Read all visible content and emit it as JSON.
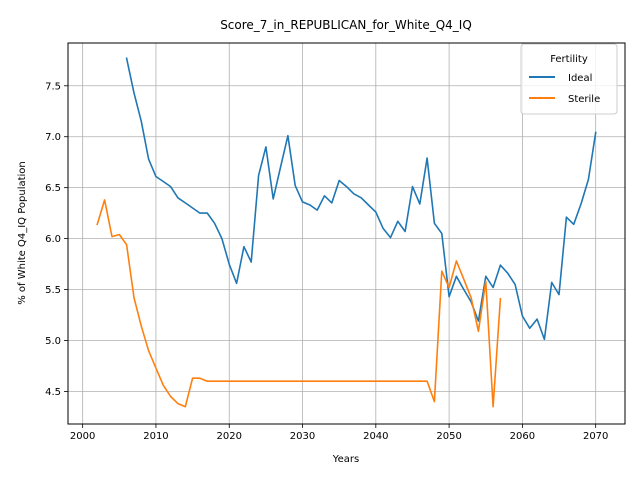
{
  "chart_data": {
    "type": "line",
    "title": "Score_7_in_REPUBLICAN_for_White_Q4_IQ",
    "xlabel": "Years",
    "ylabel": "% of White Q4_IQ Population",
    "xlim": [
      1998,
      2074
    ],
    "ylim": [
      4.18,
      7.92
    ],
    "xticks": [
      2000,
      2010,
      2020,
      2030,
      2040,
      2050,
      2060,
      2070
    ],
    "yticks": [
      4.5,
      5.0,
      5.5,
      6.0,
      6.5,
      7.0,
      7.5
    ],
    "ytick_labels": [
      "4.5",
      "5.0",
      "5.5",
      "6.0",
      "6.5",
      "7.0",
      "7.5"
    ],
    "grid": true,
    "legend": {
      "title": "Fertility",
      "position": "top-right"
    },
    "series": [
      {
        "name": "Ideal",
        "color": "#1f77b4",
        "points": [
          [
            2006,
            7.77
          ],
          [
            2007,
            7.43
          ],
          [
            2008,
            7.15
          ],
          [
            2009,
            6.78
          ],
          [
            2010,
            6.61
          ],
          [
            2011,
            6.56
          ],
          [
            2012,
            6.51
          ],
          [
            2013,
            6.4
          ],
          [
            2014,
            6.35
          ],
          [
            2015,
            6.3
          ],
          [
            2016,
            6.25
          ],
          [
            2017,
            6.25
          ],
          [
            2018,
            6.15
          ],
          [
            2019,
            6.0
          ],
          [
            2020,
            5.75
          ],
          [
            2021,
            5.56
          ],
          [
            2022,
            5.92
          ],
          [
            2023,
            5.77
          ],
          [
            2024,
            6.62
          ],
          [
            2025,
            6.9
          ],
          [
            2026,
            6.39
          ],
          [
            2027,
            6.7
          ],
          [
            2028,
            7.01
          ],
          [
            2029,
            6.52
          ],
          [
            2030,
            6.36
          ],
          [
            2031,
            6.33
          ],
          [
            2032,
            6.28
          ],
          [
            2033,
            6.42
          ],
          [
            2034,
            6.35
          ],
          [
            2035,
            6.57
          ],
          [
            2036,
            6.51
          ],
          [
            2037,
            6.44
          ],
          [
            2038,
            6.4
          ],
          [
            2039,
            6.33
          ],
          [
            2040,
            6.26
          ],
          [
            2041,
            6.1
          ],
          [
            2042,
            6.01
          ],
          [
            2043,
            6.17
          ],
          [
            2044,
            6.07
          ],
          [
            2045,
            6.51
          ],
          [
            2046,
            6.34
          ],
          [
            2047,
            6.79
          ],
          [
            2048,
            6.15
          ],
          [
            2049,
            6.05
          ],
          [
            2050,
            5.43
          ],
          [
            2051,
            5.63
          ],
          [
            2052,
            5.5
          ],
          [
            2053,
            5.38
          ],
          [
            2054,
            5.19
          ],
          [
            2055,
            5.63
          ],
          [
            2056,
            5.52
          ],
          [
            2057,
            5.74
          ],
          [
            2058,
            5.66
          ],
          [
            2059,
            5.55
          ],
          [
            2060,
            5.24
          ],
          [
            2061,
            5.12
          ],
          [
            2062,
            5.21
          ],
          [
            2063,
            5.01
          ],
          [
            2064,
            5.57
          ],
          [
            2065,
            5.45
          ],
          [
            2066,
            6.21
          ],
          [
            2067,
            6.14
          ],
          [
            2068,
            6.34
          ],
          [
            2069,
            6.58
          ],
          [
            2070,
            7.04
          ]
        ]
      },
      {
        "name": "Sterile",
        "color": "#ff7f0e",
        "points": [
          [
            2002,
            6.14
          ],
          [
            2003,
            6.38
          ],
          [
            2004,
            6.02
          ],
          [
            2005,
            6.04
          ],
          [
            2006,
            5.94
          ],
          [
            2007,
            5.42
          ],
          [
            2008,
            5.14
          ],
          [
            2009,
            4.9
          ],
          [
            2010,
            4.73
          ],
          [
            2011,
            4.56
          ],
          [
            2012,
            4.45
          ],
          [
            2013,
            4.38
          ],
          [
            2014,
            4.35
          ],
          [
            2015,
            4.63
          ],
          [
            2016,
            4.63
          ],
          [
            2017,
            4.6
          ],
          [
            2018,
            4.6
          ],
          [
            2019,
            4.6
          ],
          [
            2020,
            4.6
          ],
          [
            2025,
            4.6
          ],
          [
            2030,
            4.6
          ],
          [
            2035,
            4.6
          ],
          [
            2040,
            4.6
          ],
          [
            2045,
            4.6
          ],
          [
            2047,
            4.6
          ],
          [
            2048,
            4.4
          ],
          [
            2049,
            5.68
          ],
          [
            2050,
            5.52
          ],
          [
            2051,
            5.78
          ],
          [
            2052,
            5.6
          ],
          [
            2053,
            5.42
          ],
          [
            2054,
            5.09
          ],
          [
            2055,
            5.58
          ],
          [
            2056,
            4.35
          ],
          [
            2057,
            5.41
          ]
        ]
      }
    ]
  }
}
